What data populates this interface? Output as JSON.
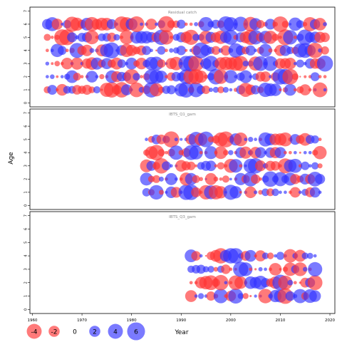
{
  "figure": {
    "ylabel": "Age",
    "xlabel": "Year",
    "x_ticks": [
      1960,
      1970,
      1980,
      1990,
      2000,
      2010,
      2020
    ],
    "xlim": [
      1959.5,
      2021
    ],
    "positive_color": "#3333ff",
    "negative_color": "#ff3333",
    "bubble_opacity": 0.65
  },
  "legend": {
    "entries": [
      {
        "label": "-4",
        "value": -4
      },
      {
        "label": "-2",
        "value": -2
      },
      {
        "label": "0",
        "value": 0
      },
      {
        "label": "2",
        "value": 2
      },
      {
        "label": "4",
        "value": 4
      },
      {
        "label": "6",
        "value": 6
      }
    ]
  },
  "chart_data": [
    {
      "type": "scatter",
      "title": "Residual catch",
      "ages": [
        0,
        1,
        2,
        3,
        4,
        5,
        6,
        7
      ],
      "years": [
        1963,
        2019
      ],
      "data_ages": [
        1,
        2,
        3,
        4,
        5,
        6
      ],
      "ylim": [
        -0.3,
        7.3
      ],
      "seed": 11
    },
    {
      "type": "scatter",
      "title": "IBTS_Q1_gam",
      "ages": [
        0,
        1,
        2,
        3,
        4,
        5,
        6,
        7
      ],
      "years": [
        1983,
        2018
      ],
      "data_ages": [
        1,
        2,
        3,
        4,
        5
      ],
      "ylim": [
        -0.3,
        7.3
      ],
      "seed": 23
    },
    {
      "type": "scatter",
      "title": "IBTS_Q3_gam",
      "ages": [
        0,
        1,
        2,
        3,
        4,
        5,
        6,
        7
      ],
      "years": [
        1992,
        2017
      ],
      "data_ages": [
        1,
        2,
        3,
        4
      ],
      "ylim": [
        -0.3,
        7.3
      ],
      "seed": 37
    }
  ]
}
